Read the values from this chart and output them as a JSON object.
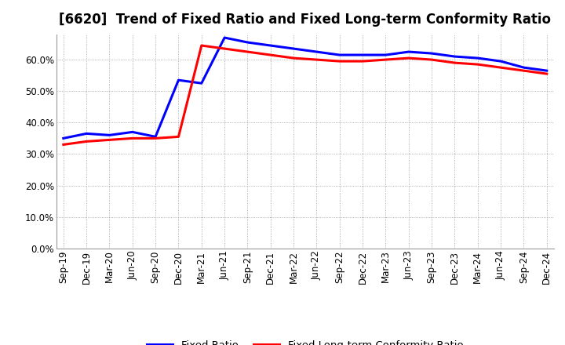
{
  "title": "[6620]  Trend of Fixed Ratio and Fixed Long-term Conformity Ratio",
  "x_labels": [
    "Sep-19",
    "Dec-19",
    "Mar-20",
    "Jun-20",
    "Sep-20",
    "Dec-20",
    "Mar-21",
    "Jun-21",
    "Sep-21",
    "Dec-21",
    "Mar-22",
    "Jun-22",
    "Sep-22",
    "Dec-22",
    "Mar-23",
    "Jun-23",
    "Sep-23",
    "Dec-23",
    "Mar-24",
    "Jun-24",
    "Sep-24",
    "Dec-24"
  ],
  "fixed_ratio": [
    35.0,
    36.5,
    36.0,
    37.0,
    35.5,
    53.5,
    52.5,
    67.0,
    65.5,
    64.5,
    63.5,
    62.5,
    61.5,
    61.5,
    61.5,
    62.5,
    62.0,
    61.0,
    60.5,
    59.5,
    57.5,
    56.5
  ],
  "fixed_lt_ratio": [
    33.0,
    34.0,
    34.5,
    35.0,
    35.0,
    35.5,
    64.5,
    63.5,
    62.5,
    61.5,
    60.5,
    60.0,
    59.5,
    59.5,
    60.0,
    60.5,
    60.0,
    59.0,
    58.5,
    57.5,
    56.5,
    55.5
  ],
  "fixed_ratio_color": "#0000FF",
  "fixed_lt_ratio_color": "#FF0000",
  "background_color": "#FFFFFF",
  "plot_bg_color": "#FFFFFF",
  "grid_color": "#AAAAAA",
  "ylim": [
    0,
    68
  ],
  "yticks": [
    0,
    10,
    20,
    30,
    40,
    50,
    60
  ],
  "legend_fixed": "Fixed Ratio",
  "legend_fixed_lt": "Fixed Long-term Conformity Ratio",
  "title_fontsize": 12,
  "axis_fontsize": 8.5,
  "legend_fontsize": 9.5
}
